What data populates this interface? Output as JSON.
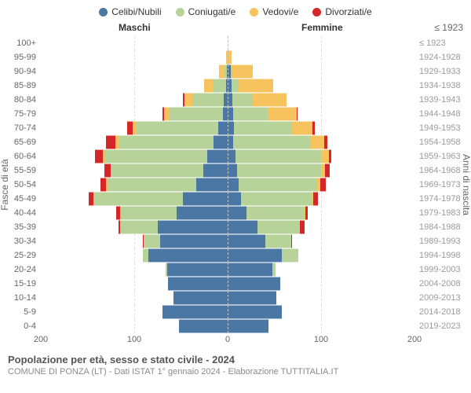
{
  "legend": {
    "items": [
      {
        "label": "Celibi/Nubili",
        "color": "#4a77a4"
      },
      {
        "label": "Coniugati/e",
        "color": "#b7d39a"
      },
      {
        "label": "Vedovi/e",
        "color": "#f7c35f"
      },
      {
        "label": "Divorziati/e",
        "color": "#d62728"
      }
    ]
  },
  "headers": {
    "left": "Maschi",
    "right": "Femmine",
    "y_left": "Fasce di età",
    "y_right": "Anni di nascita"
  },
  "x_axis": {
    "max": 200,
    "ticks": [
      200,
      100,
      0,
      100,
      200
    ]
  },
  "colors": {
    "celibi": "#4a77a4",
    "coniugati": "#b7d39a",
    "vedovi": "#f7c35f",
    "divorziati": "#d62728",
    "grid": "#e2e2e2",
    "center": "#bfbfbf",
    "bg": "#ffffff"
  },
  "caption": {
    "title": "Popolazione per età, sesso e stato civile - 2024",
    "subtitle": "COMUNE DI PONZA (LT) - Dati ISTAT 1° gennaio 2024 - Elaborazione TUTTITALIA.IT"
  },
  "rows": [
    {
      "age": "100+",
      "year": "≤ 1923",
      "m": {
        "cel": 0,
        "con": 0,
        "ved": 0,
        "div": 0
      },
      "f": {
        "cel": 0,
        "con": 0,
        "ved": 0,
        "div": 0
      }
    },
    {
      "age": "95-99",
      "year": "1924-1928",
      "m": {
        "cel": 0,
        "con": 0,
        "ved": 2,
        "div": 0
      },
      "f": {
        "cel": 0,
        "con": 0,
        "ved": 4,
        "div": 0
      }
    },
    {
      "age": "90-94",
      "year": "1929-1933",
      "m": {
        "cel": 1,
        "con": 2,
        "ved": 6,
        "div": 0
      },
      "f": {
        "cel": 3,
        "con": 2,
        "ved": 22,
        "div": 0
      }
    },
    {
      "age": "85-89",
      "year": "1934-1938",
      "m": {
        "cel": 2,
        "con": 14,
        "ved": 9,
        "div": 0
      },
      "f": {
        "cel": 4,
        "con": 7,
        "ved": 38,
        "div": 0
      }
    },
    {
      "age": "80-84",
      "year": "1939-1943",
      "m": {
        "cel": 4,
        "con": 34,
        "ved": 8,
        "div": 2
      },
      "f": {
        "cel": 5,
        "con": 22,
        "ved": 36,
        "div": 0
      }
    },
    {
      "age": "75-79",
      "year": "1944-1948",
      "m": {
        "cel": 5,
        "con": 58,
        "ved": 5,
        "div": 2
      },
      "f": {
        "cel": 6,
        "con": 38,
        "ved": 30,
        "div": 1
      }
    },
    {
      "age": "70-74",
      "year": "1949-1953",
      "m": {
        "cel": 10,
        "con": 88,
        "ved": 4,
        "div": 6
      },
      "f": {
        "cel": 7,
        "con": 62,
        "ved": 22,
        "div": 2
      }
    },
    {
      "age": "65-69",
      "year": "1954-1958",
      "m": {
        "cel": 15,
        "con": 102,
        "ved": 3,
        "div": 10
      },
      "f": {
        "cel": 6,
        "con": 82,
        "ved": 15,
        "div": 4
      }
    },
    {
      "age": "60-64",
      "year": "1959-1963",
      "m": {
        "cel": 22,
        "con": 110,
        "ved": 2,
        "div": 8
      },
      "f": {
        "cel": 8,
        "con": 92,
        "ved": 8,
        "div": 3
      }
    },
    {
      "age": "55-59",
      "year": "1964-1968",
      "m": {
        "cel": 26,
        "con": 98,
        "ved": 1,
        "div": 7
      },
      "f": {
        "cel": 10,
        "con": 90,
        "ved": 4,
        "div": 5
      }
    },
    {
      "age": "50-54",
      "year": "1969-1973",
      "m": {
        "cel": 34,
        "con": 95,
        "ved": 1,
        "div": 6
      },
      "f": {
        "cel": 12,
        "con": 84,
        "ved": 3,
        "div": 6
      }
    },
    {
      "age": "45-49",
      "year": "1974-1978",
      "m": {
        "cel": 48,
        "con": 96,
        "ved": 0,
        "div": 5
      },
      "f": {
        "cel": 14,
        "con": 76,
        "ved": 2,
        "div": 5
      }
    },
    {
      "age": "40-44",
      "year": "1979-1983",
      "m": {
        "cel": 55,
        "con": 60,
        "ved": 0,
        "div": 4
      },
      "f": {
        "cel": 20,
        "con": 62,
        "ved": 1,
        "div": 3
      }
    },
    {
      "age": "35-39",
      "year": "1984-1988",
      "m": {
        "cel": 75,
        "con": 40,
        "ved": 0,
        "div": 2
      },
      "f": {
        "cel": 32,
        "con": 45,
        "ved": 0,
        "div": 5
      }
    },
    {
      "age": "30-34",
      "year": "1989-1993",
      "m": {
        "cel": 72,
        "con": 18,
        "ved": 0,
        "div": 1
      },
      "f": {
        "cel": 40,
        "con": 28,
        "ved": 0,
        "div": 1
      }
    },
    {
      "age": "25-29",
      "year": "1994-1998",
      "m": {
        "cel": 85,
        "con": 6,
        "ved": 0,
        "div": 0
      },
      "f": {
        "cel": 58,
        "con": 18,
        "ved": 0,
        "div": 0
      }
    },
    {
      "age": "20-24",
      "year": "1999-2003",
      "m": {
        "cel": 65,
        "con": 1,
        "ved": 0,
        "div": 0
      },
      "f": {
        "cel": 48,
        "con": 3,
        "ved": 0,
        "div": 0
      }
    },
    {
      "age": "15-19",
      "year": "2004-2008",
      "m": {
        "cel": 64,
        "con": 0,
        "ved": 0,
        "div": 0
      },
      "f": {
        "cel": 56,
        "con": 0,
        "ved": 0,
        "div": 0
      }
    },
    {
      "age": "10-14",
      "year": "2009-2013",
      "m": {
        "cel": 58,
        "con": 0,
        "ved": 0,
        "div": 0
      },
      "f": {
        "cel": 52,
        "con": 0,
        "ved": 0,
        "div": 0
      }
    },
    {
      "age": "5-9",
      "year": "2014-2018",
      "m": {
        "cel": 70,
        "con": 0,
        "ved": 0,
        "div": 0
      },
      "f": {
        "cel": 58,
        "con": 0,
        "ved": 0,
        "div": 0
      }
    },
    {
      "age": "0-4",
      "year": "2019-2023",
      "m": {
        "cel": 52,
        "con": 0,
        "ved": 0,
        "div": 0
      },
      "f": {
        "cel": 44,
        "con": 0,
        "ved": 0,
        "div": 0
      }
    }
  ]
}
